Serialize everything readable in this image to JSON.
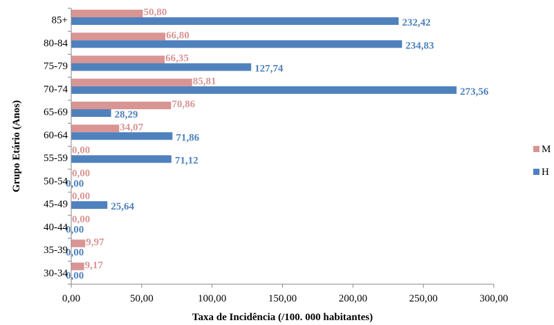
{
  "chart_data": {
    "type": "bar",
    "orientation": "horizontal",
    "categories": [
      "85+",
      "80-84",
      "75-79",
      "70-74",
      "65-69",
      "60-64",
      "55-59",
      "50-54",
      "45-49",
      "40-44",
      "35-39",
      "30-34"
    ],
    "series": [
      {
        "name": "M",
        "color": "#d99594",
        "values": [
          50.8,
          66.8,
          66.35,
          85.81,
          70.86,
          34.07,
          0.0,
          0.0,
          0.0,
          0.0,
          9.97,
          9.17
        ],
        "labels": [
          "50,80",
          "66,80",
          "66,35",
          "85,81",
          "70,86",
          "34,07",
          "0,00",
          "0,00",
          "0,00",
          "0,00",
          "9,97",
          "9,17"
        ]
      },
      {
        "name": "H",
        "color": "#4f81bd",
        "values": [
          232.42,
          234.83,
          127.74,
          273.56,
          28.29,
          71.86,
          71.12,
          0.0,
          25.64,
          0.0,
          0.0,
          0.0
        ],
        "labels": [
          "232,42",
          "234,83",
          "127,74",
          "273,56",
          "28,29",
          "71,86",
          "71,12",
          "0,00",
          "25,64",
          "0,00",
          "0,00",
          "0,00"
        ]
      }
    ],
    "xlim": [
      0,
      300
    ],
    "xticks": [
      0,
      50,
      100,
      150,
      200,
      250,
      300
    ],
    "xtick_labels": [
      "0,00",
      "50,00",
      "100,00",
      "150,00",
      "200,00",
      "250,00",
      "300,00"
    ],
    "xlabel": "Taxa de Incidência  (/100. 000 habitantes)",
    "ylabel": "Grupo Etário (Anos)",
    "legend": [
      "M",
      "H"
    ],
    "legend_position": "right",
    "grid": false
  }
}
